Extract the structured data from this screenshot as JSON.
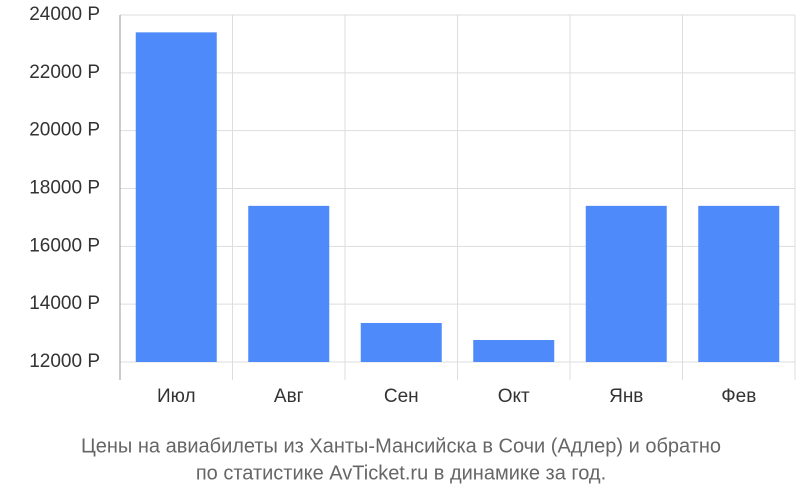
{
  "chart_data": {
    "type": "bar",
    "title": [
      "Цены на авиабилеты из Ханты-Мансийска в Сочи (Адлер) и обратно",
      "по статистике AvTicket.ru в динамике за год."
    ],
    "categories": [
      "Июл",
      "Авг",
      "Сен",
      "Окт",
      "Янв",
      "Фев"
    ],
    "values": [
      23400,
      17400,
      13350,
      12760,
      17400,
      17400
    ],
    "color": "#4e8af9",
    "ylim": [
      12000,
      24000
    ],
    "yticks": [
      {
        "value": 12000,
        "label": "12000 Р"
      },
      {
        "value": 14000,
        "label": "14000 Р"
      },
      {
        "value": 16000,
        "label": "16000 Р"
      },
      {
        "value": 18000,
        "label": "18000 Р"
      },
      {
        "value": 20000,
        "label": "20000 Р"
      },
      {
        "value": 22000,
        "label": "22000 Р"
      },
      {
        "value": 24000,
        "label": "24000 Р"
      }
    ],
    "grid": true
  }
}
